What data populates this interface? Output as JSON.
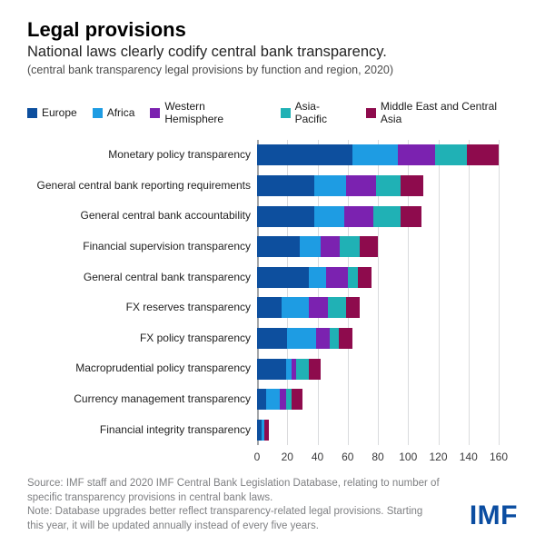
{
  "header": {
    "title": "Legal provisions",
    "subtitle": "National laws clearly codify central bank transparency.",
    "caption": "(central bank transparency legal provisions by function and region, 2020)"
  },
  "chart_data": {
    "type": "bar",
    "orientation": "horizontal",
    "stacked": true,
    "categories": [
      "Monetary policy transparency",
      "General central bank reporting requirements",
      "General central bank accountability",
      "Financial supervision transparency",
      "General central bank transparency",
      "FX reserves transparency",
      "FX policy transparency",
      "Macroprudential policy transparency",
      "Currency management transparency",
      "Financial integrity transparency"
    ],
    "series": [
      {
        "name": "Europe",
        "color": "#0d4f9e",
        "values": [
          63,
          38,
          38,
          28,
          34,
          16,
          20,
          19,
          6,
          3
        ]
      },
      {
        "name": "Africa",
        "color": "#1e9ce3",
        "values": [
          30,
          21,
          20,
          14,
          12,
          18,
          19,
          4,
          9,
          2
        ]
      },
      {
        "name": "Western Hemisphere",
        "color": "#7b22b0",
        "values": [
          25,
          20,
          19,
          13,
          14,
          13,
          9,
          3,
          4,
          0
        ]
      },
      {
        "name": "Asia-Pacific",
        "color": "#20b1b5",
        "values": [
          21,
          16,
          18,
          13,
          7,
          12,
          6,
          8,
          4,
          0
        ]
      },
      {
        "name": "Middle East and Central Asia",
        "color": "#8e0b4d",
        "values": [
          21,
          15,
          14,
          12,
          9,
          9,
          9,
          8,
          7,
          3
        ]
      }
    ],
    "totals": [
      160,
      110,
      109,
      80,
      76,
      68,
      63,
      42,
      30,
      8
    ],
    "xlim": [
      0,
      160
    ],
    "xticks": [
      0,
      20,
      40,
      60,
      80,
      100,
      120,
      140,
      160
    ],
    "grid": "vertical",
    "legend_position": "top"
  },
  "footer": {
    "source": "Source: IMF staff and 2020 IMF Central Bank Legislation Database, relating to number of specific transparency provisions in central bank laws.",
    "note": "Note: Database upgrades better reflect transparency-related legal provisions. Starting this year, it will be updated annually instead of every five years.",
    "logo": "IMF"
  }
}
